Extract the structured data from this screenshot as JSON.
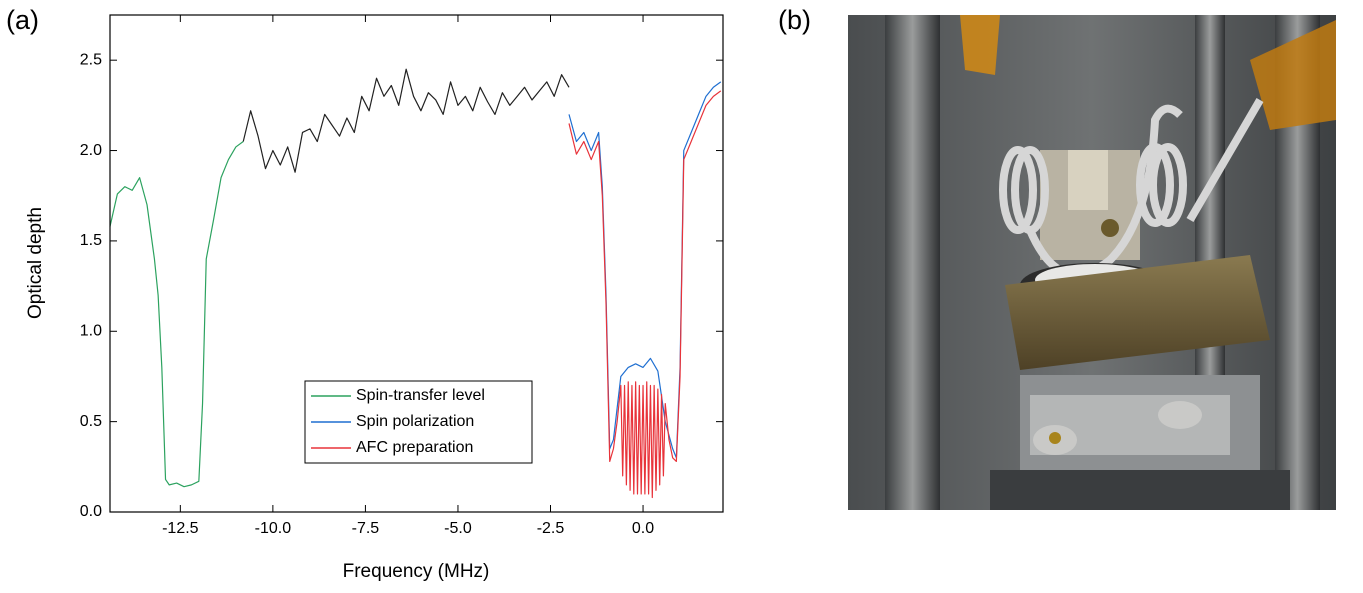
{
  "chart_data": {
    "type": "line",
    "xlabel": "Frequency (MHz)",
    "ylabel": "Optical depth",
    "xlim": [
      -14.4,
      2.16
    ],
    "ylim": [
      0,
      2.75
    ],
    "xticks": [
      -12.5,
      {
        "value": -10,
        "label": "-10.0"
      },
      -7.5,
      {
        "value": -5,
        "label": "-5.0"
      },
      -2.5,
      {
        "value": 0,
        "label": "0.0"
      }
    ],
    "yticks": [
      {
        "value": 0,
        "label": "0.0"
      },
      0.5,
      {
        "value": 1,
        "label": "1.0"
      },
      1.5,
      {
        "value": 2,
        "label": "2.0"
      },
      2.5
    ],
    "grid": false,
    "legend": "lower center",
    "series": [
      {
        "name": "Spin-transfer level",
        "color": "#2ca25f",
        "x": [
          -14.4,
          -14.2,
          -14.0,
          -13.8,
          -13.6,
          -13.4,
          -13.2,
          -13.1,
          -13.0,
          -12.9,
          -12.8,
          -12.6,
          -12.4,
          -12.2,
          -12.0,
          -11.9,
          -11.8,
          -11.6,
          -11.4,
          -11.2,
          -11.0,
          -10.8
        ],
        "values": [
          1.58,
          1.76,
          1.8,
          1.78,
          1.85,
          1.7,
          1.4,
          1.2,
          0.8,
          0.18,
          0.15,
          0.16,
          0.14,
          0.15,
          0.17,
          0.6,
          1.4,
          1.62,
          1.85,
          1.95,
          2.02,
          2.05
        ]
      },
      {
        "color": "#222222",
        "x": [
          -10.8,
          -10.6,
          -10.4,
          -10.2,
          -10.0,
          -9.8,
          -9.6,
          -9.4,
          -9.2,
          -9.0,
          -8.8,
          -8.6,
          -8.4,
          -8.2,
          -8.0,
          -7.8,
          -7.6,
          -7.4,
          -7.2,
          -7.0,
          -6.8,
          -6.6,
          -6.4,
          -6.2,
          -6.0,
          -5.8,
          -5.6,
          -5.4,
          -5.2,
          -5.0,
          -4.8,
          -4.6,
          -4.4,
          -4.2,
          -4.0,
          -3.8,
          -3.6,
          -3.4,
          -3.2,
          -3.0,
          -2.8,
          -2.6,
          -2.4,
          -2.2,
          -2.0
        ],
        "values": [
          2.05,
          2.22,
          2.08,
          1.9,
          2.0,
          1.92,
          2.02,
          1.88,
          2.1,
          2.12,
          2.05,
          2.2,
          2.14,
          2.08,
          2.18,
          2.1,
          2.3,
          2.22,
          2.4,
          2.3,
          2.36,
          2.25,
          2.45,
          2.3,
          2.22,
          2.32,
          2.28,
          2.2,
          2.38,
          2.25,
          2.3,
          2.22,
          2.35,
          2.27,
          2.2,
          2.32,
          2.25,
          2.3,
          2.35,
          2.28,
          2.33,
          2.38,
          2.3,
          2.42,
          2.35
        ]
      },
      {
        "name": "Spin polarization",
        "color": "#1f6fd1",
        "x": [
          -2.0,
          -1.8,
          -1.6,
          -1.4,
          -1.2,
          -1.1,
          -1.0,
          -0.9,
          -0.8,
          -0.6,
          -0.4,
          -0.2,
          0.0,
          0.2,
          0.4,
          0.6,
          0.8,
          0.9,
          1.0,
          1.1,
          1.3,
          1.5,
          1.7,
          1.9,
          2.1
        ],
        "values": [
          2.2,
          2.05,
          2.1,
          2.0,
          2.1,
          1.8,
          1.2,
          0.35,
          0.4,
          0.75,
          0.8,
          0.82,
          0.8,
          0.85,
          0.78,
          0.5,
          0.35,
          0.3,
          0.8,
          2.0,
          2.1,
          2.2,
          2.3,
          2.35,
          2.38
        ]
      },
      {
        "name": "AFC preparation",
        "color": "#e8333a",
        "x": [
          -2.0,
          -1.8,
          -1.6,
          -1.4,
          -1.2,
          -1.1,
          -1.0,
          -0.9,
          -0.8,
          -0.7,
          -0.6,
          -0.55,
          -0.5,
          -0.45,
          -0.4,
          -0.35,
          -0.3,
          -0.25,
          -0.2,
          -0.15,
          -0.1,
          -0.05,
          0.0,
          0.05,
          0.1,
          0.15,
          0.2,
          0.25,
          0.3,
          0.35,
          0.4,
          0.45,
          0.5,
          0.55,
          0.6,
          0.7,
          0.8,
          0.9,
          1.0,
          1.1,
          1.3,
          1.5,
          1.7,
          1.9,
          2.1
        ],
        "values": [
          2.15,
          1.98,
          2.05,
          1.95,
          2.05,
          1.75,
          1.15,
          0.28,
          0.35,
          0.5,
          0.7,
          0.2,
          0.7,
          0.15,
          0.72,
          0.12,
          0.7,
          0.1,
          0.72,
          0.1,
          0.7,
          0.1,
          0.7,
          0.1,
          0.72,
          0.1,
          0.7,
          0.08,
          0.7,
          0.12,
          0.68,
          0.15,
          0.65,
          0.2,
          0.6,
          0.4,
          0.3,
          0.28,
          0.75,
          1.95,
          2.05,
          2.15,
          2.25,
          2.3,
          2.33
        ]
      }
    ]
  },
  "figure_labels": [
    "(a)",
    "(b)"
  ]
}
